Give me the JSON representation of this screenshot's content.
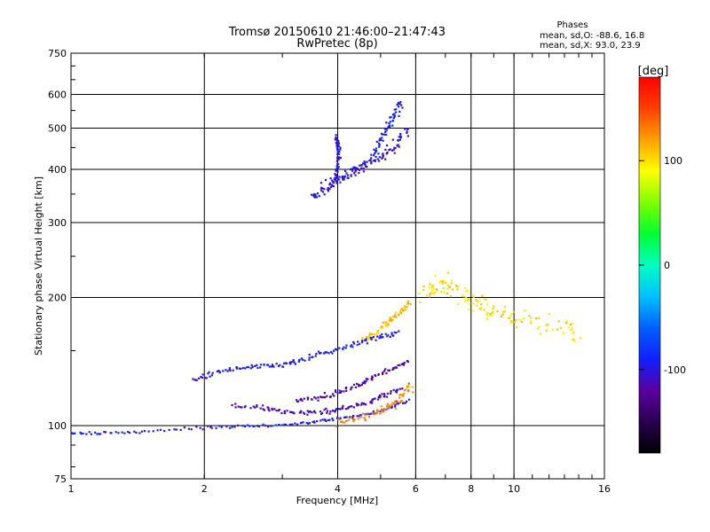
{
  "chart_data": {
    "type": "scatter",
    "title": "Tromsø 20150610 21:46:00–21:47:43",
    "subtitle": "RwPretec (8p)",
    "xlabel": "Frequency [MHz]",
    "ylabel": "Stationary phase Virtual Height [km]",
    "x_scale": "log",
    "y_scale": "log",
    "xlim": [
      1,
      16
    ],
    "ylim": [
      75,
      750
    ],
    "x_ticks": [
      {
        "value": 1,
        "label": "1"
      },
      {
        "value": 2,
        "label": "2"
      },
      {
        "value": 4,
        "label": "4"
      },
      {
        "value": 6,
        "label": "6"
      },
      {
        "value": 8,
        "label": "8"
      },
      {
        "value": 10,
        "label": "10"
      },
      {
        "value": 16,
        "label": "16"
      }
    ],
    "y_ticks": [
      {
        "value": 75,
        "label": "75"
      },
      {
        "value": 100,
        "label": "100"
      },
      {
        "value": 200,
        "label": "200"
      },
      {
        "value": 300,
        "label": "300"
      },
      {
        "value": 400,
        "label": "400"
      },
      {
        "value": 500,
        "label": "500"
      },
      {
        "value": 600,
        "label": "600"
      },
      {
        "value": 750,
        "label": "750"
      }
    ],
    "x_gridlines": [
      2,
      4,
      6,
      8,
      10
    ],
    "y_gridlines": [
      100,
      200,
      300,
      400,
      500,
      600
    ],
    "legend": {
      "title": "Phases",
      "lines": [
        "mean, sd,O:  -88.6, 16.8",
        "mean, sd,X:  93.0, 23.9"
      ]
    },
    "colorbar": {
      "label": "[deg]",
      "range": [
        -180,
        180
      ],
      "ticks": [
        {
          "value": 100,
          "label": "100"
        },
        {
          "value": 0,
          "label": "0"
        },
        {
          "value": -100,
          "label": "-100"
        }
      ],
      "stops": [
        "#000000",
        "#2a0050",
        "#5a00a0",
        "#1020ff",
        "#0060ff",
        "#00c0ff",
        "#00ffc0",
        "#00ff30",
        "#80ff00",
        "#ffff00",
        "#ffa000",
        "#ff4000",
        "#ff0000"
      ]
    },
    "traces": [
      {
        "id": "o-low-band",
        "x": [
          1.0,
          1.2,
          1.5,
          2.0,
          2.5,
          3.0,
          3.5,
          4.0,
          4.6,
          5.2,
          5.8
        ],
        "y": [
          96,
          96,
          97,
          99,
          100,
          100,
          102,
          104,
          106,
          110,
          115
        ],
        "color_deg": -95,
        "spread": 0.012
      },
      {
        "id": "o-trace-2",
        "x": [
          2.3,
          2.7,
          3.0,
          3.4,
          3.8,
          4.2,
          4.7,
          5.1,
          5.6
        ],
        "y": [
          112,
          110,
          108,
          107,
          108,
          110,
          114,
          118,
          122
        ],
        "color_deg": -110,
        "spread": 0.02
      },
      {
        "id": "o-trace-3",
        "x": [
          3.2,
          3.6,
          4.0,
          4.4,
          4.8,
          5.3,
          5.8
        ],
        "y": [
          114,
          116,
          120,
          124,
          130,
          136,
          142
        ],
        "color_deg": -115,
        "spread": 0.018
      },
      {
        "id": "f-band",
        "x": [
          1.9,
          2.1,
          2.4,
          2.7,
          3.0,
          3.3,
          3.7,
          4.1,
          4.6,
          5.0,
          5.5
        ],
        "y": [
          128,
          133,
          137,
          138,
          139,
          143,
          148,
          152,
          158,
          162,
          166
        ],
        "color_deg": -95,
        "spread": 0.02
      },
      {
        "id": "x-mid",
        "x": [
          4.0,
          4.5,
          5.0,
          5.3,
          5.6,
          5.9
        ],
        "y": [
          102,
          105,
          108,
          112,
          118,
          125
        ],
        "color_deg": 130,
        "spread": 0.03
      },
      {
        "id": "x-upper",
        "x": [
          4.6,
          5.0,
          5.3,
          5.6,
          5.8
        ],
        "y": [
          160,
          168,
          178,
          188,
          195
        ],
        "color_deg": 110,
        "spread": 0.025
      },
      {
        "id": "f2-cluster",
        "x": [
          3.5,
          3.7,
          3.9,
          4.0,
          4.2,
          4.4,
          4.6,
          4.9,
          5.2,
          5.5,
          5.8
        ],
        "y": [
          345,
          358,
          370,
          380,
          390,
          400,
          410,
          420,
          440,
          470,
          500
        ],
        "color_deg": -100,
        "spread": 0.04
      },
      {
        "id": "f2-column",
        "x": [
          3.95,
          4.0,
          4.02,
          4.0,
          3.98
        ],
        "y": [
          380,
          410,
          440,
          460,
          480
        ],
        "color_deg": -100,
        "spread": 0.015
      },
      {
        "id": "f2-upper",
        "x": [
          4.8,
          5.0,
          5.2,
          5.4,
          5.6
        ],
        "y": [
          430,
          470,
          510,
          540,
          580
        ],
        "color_deg": -90,
        "spread": 0.03
      },
      {
        "id": "scatter-high",
        "x": [
          6.3,
          6.6,
          7.0,
          7.5,
          8.0,
          8.5,
          9.0,
          10.0,
          11.0,
          13.0,
          14.0
        ],
        "y": [
          200,
          210,
          220,
          205,
          195,
          190,
          185,
          180,
          175,
          170,
          160
        ],
        "color_deg": 100,
        "spread": 0.08
      }
    ]
  }
}
